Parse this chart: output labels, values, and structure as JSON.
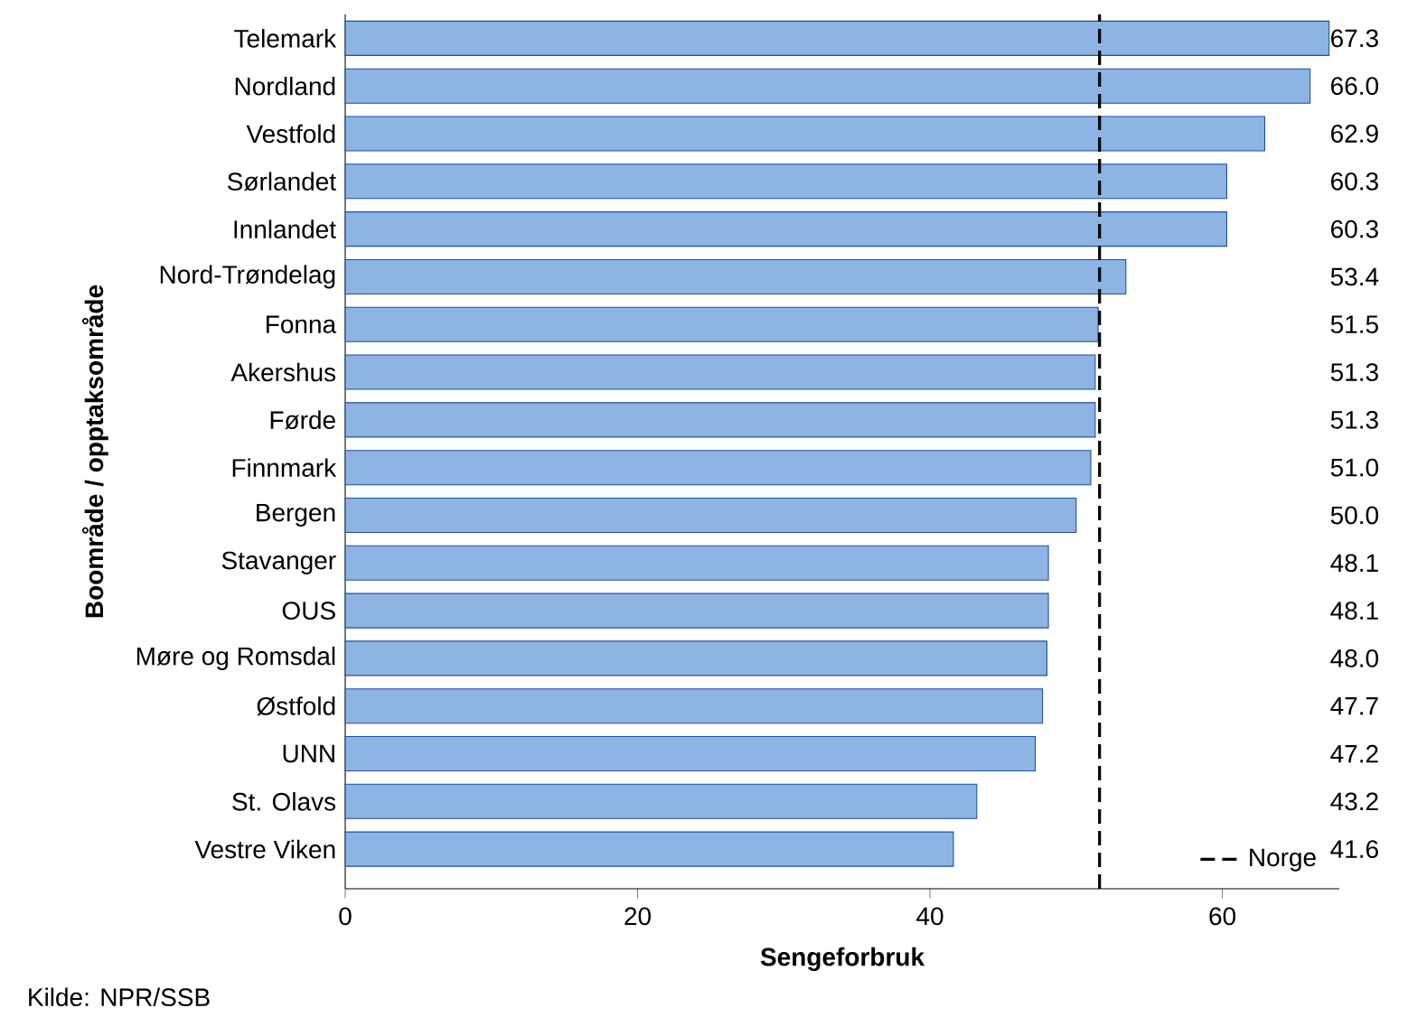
{
  "chart_data": {
    "type": "bar",
    "orientation": "horizontal",
    "xlabel": "Sengeforbruk",
    "ylabel": "Boområde / opptaksområde",
    "categories": [
      "Telemark",
      "Nordland",
      "Vestfold",
      "Sørlandet",
      "Innlandet",
      "Nord-Trøndelag",
      "Fonna",
      "Akershus",
      "Førde",
      "Finnmark",
      "Bergen",
      "Stavanger",
      "OUS",
      "Møre og Romsdal",
      "Østfold",
      "UNN",
      "St. Olavs",
      "Vestre Viken"
    ],
    "values": [
      67.3,
      66.0,
      62.9,
      60.3,
      60.3,
      53.4,
      51.5,
      51.3,
      51.3,
      51.0,
      50.0,
      48.1,
      48.1,
      48.0,
      47.7,
      47.2,
      43.2,
      41.6
    ],
    "value_labels": [
      "67.3",
      "66.0",
      "62.9",
      "60.3",
      "60.3",
      "53.4",
      "51.5",
      "51.3",
      "51.3",
      "51.0",
      "50.0",
      "48.1",
      "48.1",
      "48.0",
      "47.7",
      "47.2",
      "43.2",
      "41.6"
    ],
    "color": "#8db4e2",
    "xlim": [
      0,
      68
    ],
    "xticks": [
      0,
      20,
      40,
      60
    ],
    "ref_lines": [
      {
        "axis": "x",
        "value": 51.6,
        "label": "Norge",
        "line_style": "dashed",
        "color": "#000000"
      }
    ],
    "legend": "bottom right",
    "annotations": [
      "Kilde: NPR/SSB"
    ]
  }
}
